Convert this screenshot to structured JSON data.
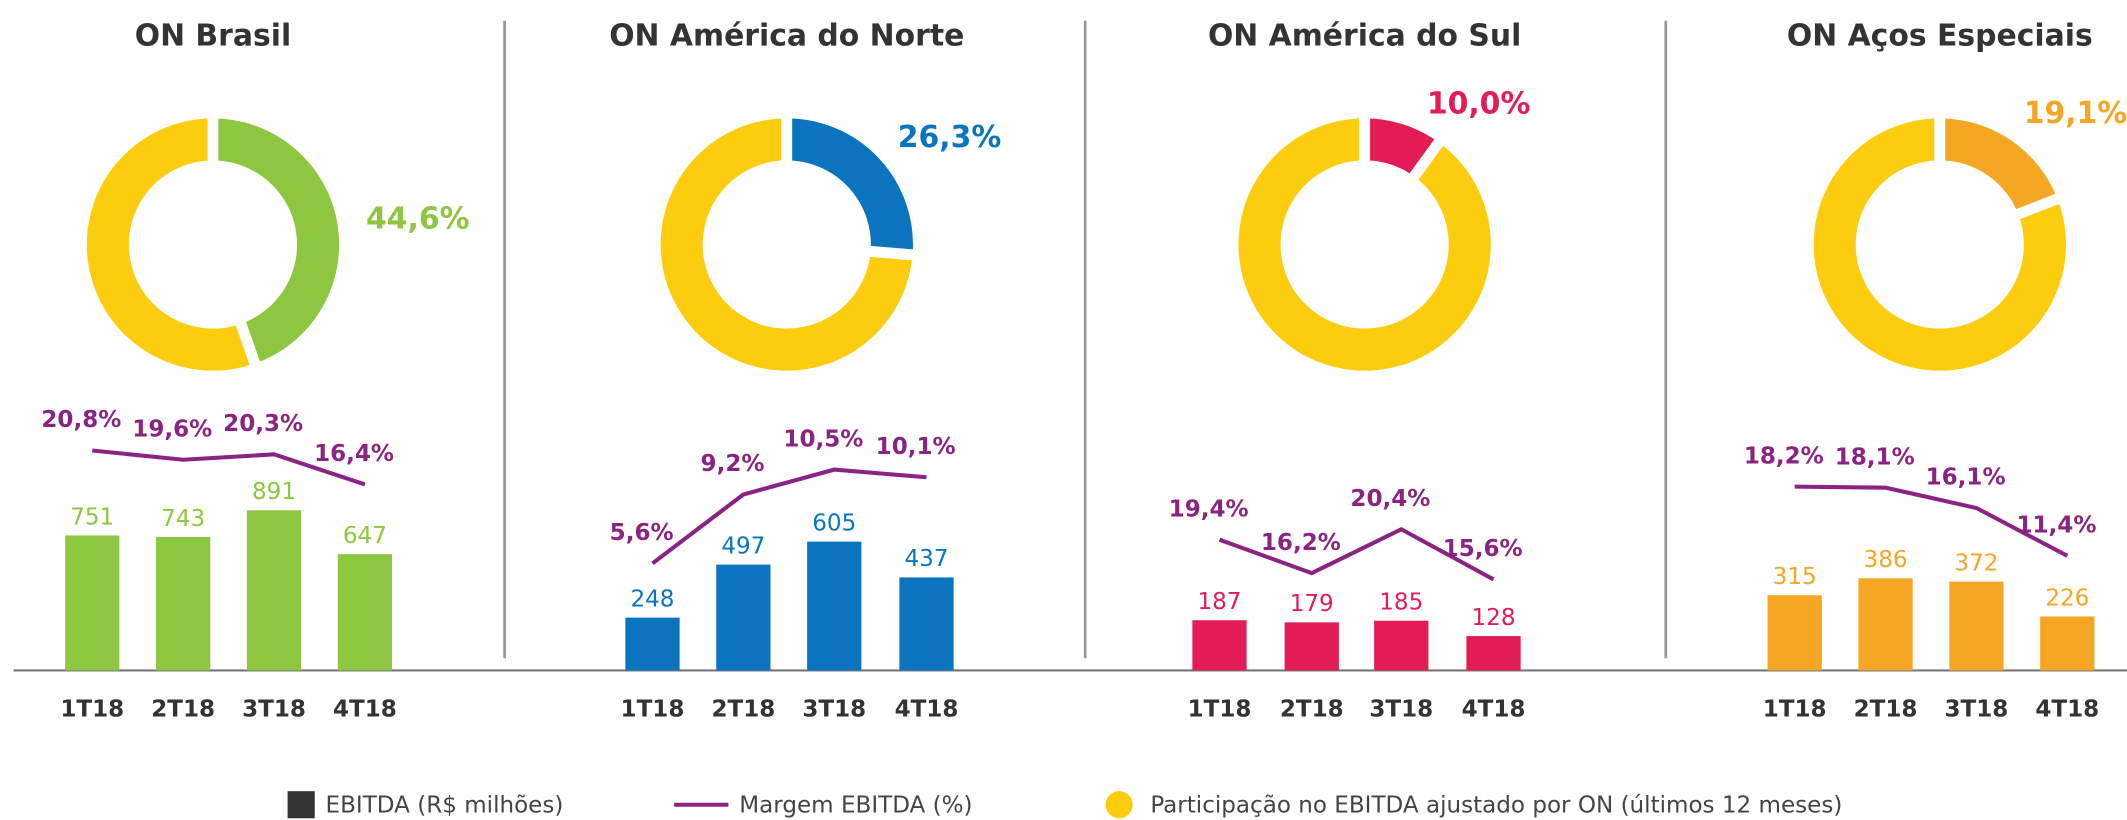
{
  "chart_data": [
    {
      "type": "bar",
      "title": "ON Brasil",
      "color": "#8dc63f",
      "categories": [
        "1T18",
        "2T18",
        "3T18",
        "4T18"
      ],
      "series": [
        {
          "values": [
            751,
            743,
            891,
            647
          ],
          "color": "#8dc63f"
        },
        {
          "values": [
            20.8,
            19.6,
            20.3,
            16.4
          ],
          "value_labels": [
            "20,8%",
            "19,6%",
            "20,3%",
            "16,4%"
          ],
          "color": "#8b2383"
        }
      ],
      "donut": {
        "type": "pie",
        "value": 44.6,
        "label": "44,6%",
        "color": "#8dc63f",
        "rest_color": "#fccd0f"
      }
    },
    {
      "type": "bar",
      "title": "ON América do Norte",
      "color": "#0a74bf",
      "categories": [
        "1T18",
        "2T18",
        "3T18",
        "4T18"
      ],
      "series": [
        {
          "values": [
            248,
            497,
            605,
            437
          ],
          "color": "#0a74bf"
        },
        {
          "values": [
            5.6,
            9.2,
            10.5,
            10.1
          ],
          "value_labels": [
            "5,6%",
            "9,2%",
            "10,5%",
            "10,1%"
          ],
          "color": "#8b2383"
        }
      ],
      "donut": {
        "type": "pie",
        "value": 26.3,
        "label": "26,3%",
        "color": "#0a74bf",
        "rest_color": "#fccd0f"
      }
    },
    {
      "type": "bar",
      "title": "ON América do Sul",
      "color": "#e31c58",
      "categories": [
        "1T18",
        "2T18",
        "3T18",
        "4T18"
      ],
      "series": [
        {
          "values": [
            187,
            179,
            185,
            128
          ],
          "color": "#e31c58"
        },
        {
          "values": [
            19.4,
            16.2,
            20.4,
            15.6
          ],
          "value_labels": [
            "19,4%",
            "16,2%",
            "20,4%",
            "15,6%"
          ],
          "color": "#8b2383"
        }
      ],
      "donut": {
        "type": "pie",
        "value": 10.0,
        "label": "10,0%",
        "color": "#e31c58",
        "rest_color": "#fccd0f"
      }
    },
    {
      "type": "bar",
      "title": "ON Aços Especiais",
      "color": "#f5a623",
      "categories": [
        "1T18",
        "2T18",
        "3T18",
        "4T18"
      ],
      "series": [
        {
          "values": [
            315,
            386,
            372,
            226
          ],
          "color": "#f5a623"
        },
        {
          "values": [
            18.2,
            18.1,
            16.1,
            11.4
          ],
          "value_labels": [
            "18,2%",
            "18,1%",
            "16,1%",
            "11,4%"
          ],
          "color": "#8b2383"
        }
      ],
      "donut": {
        "type": "pie",
        "value": 19.1,
        "label": "19,1%",
        "color": "#f5a623",
        "rest_color": "#fccd0f"
      }
    }
  ],
  "legend": {
    "items": [
      {
        "name": "EBITDA (R$ milhões)",
        "color": "#333333",
        "shape": "square"
      },
      {
        "name": "Margem EBITDA (%)",
        "color": "#8b2383",
        "shape": "line"
      },
      {
        "name": "Participação no EBITDA ajustado por ON (últimos 12 meses)",
        "color": "#fccd0f",
        "shape": "circle"
      }
    ]
  }
}
